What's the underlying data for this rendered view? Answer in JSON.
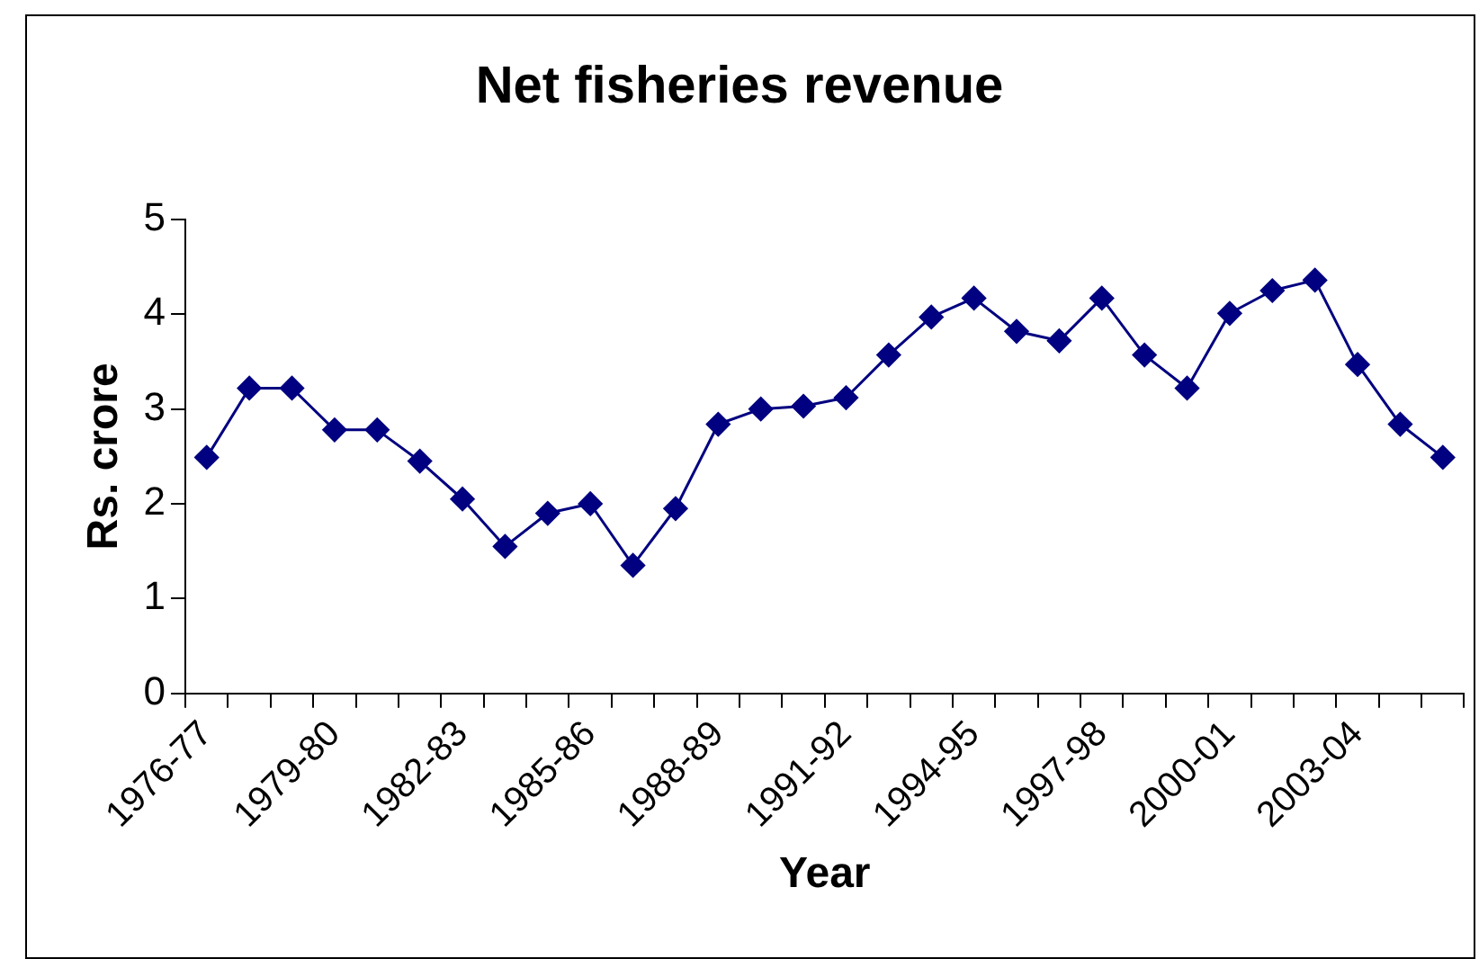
{
  "chart_data": {
    "type": "line",
    "title": "Net fisheries revenue",
    "xlabel": "Year",
    "ylabel": "Rs. crore",
    "categories": [
      "1976-77",
      null,
      null,
      "1979-80",
      null,
      null,
      "1982-83",
      null,
      null,
      "1985-86",
      null,
      null,
      "1988-89",
      null,
      null,
      "1991-92",
      null,
      null,
      "1994-95",
      null,
      null,
      "1997-98",
      null,
      null,
      "2000-01",
      null,
      null,
      "2003-04",
      null,
      null
    ],
    "series": [
      {
        "color": "#000080",
        "values": [
          2.49,
          3.22,
          3.22,
          2.78,
          2.78,
          2.45,
          2.05,
          1.55,
          1.9,
          2.0,
          1.35,
          1.95,
          2.84,
          3.0,
          3.03,
          3.12,
          3.57,
          3.97,
          4.17,
          3.82,
          3.72,
          4.17,
          3.57,
          3.22,
          4.01,
          4.25,
          4.36,
          3.47,
          2.84,
          2.49
        ]
      }
    ],
    "ylim": [
      0,
      5
    ],
    "yticks": [
      0,
      1,
      2,
      3,
      4,
      5
    ],
    "grid": false,
    "legend": false,
    "marker": "diamond",
    "line_style": "solid"
  }
}
